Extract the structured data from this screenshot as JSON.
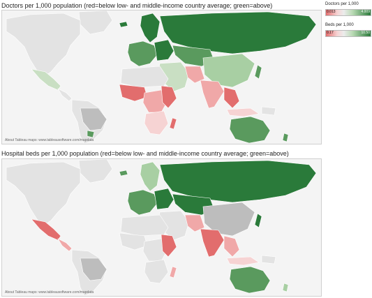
{
  "maps": [
    {
      "title": "Doctors per 1,000 population (red=below low- and middle-income country average; green=above)",
      "about": "About Tableau maps: www.tableausoftware.com/mapdata"
    },
    {
      "title": "Hospital beds per 1,000 population (red=below low- and middle-income country average; green=above)",
      "about": "About Tableau maps: www.tableausoftware.com/mapdata"
    }
  ],
  "legends": [
    {
      "title": "Doctors per 1,000",
      "min": "0.013",
      "max": "4.009"
    },
    {
      "title": "Beds per 1,000",
      "min": "0.17",
      "max": "10.50"
    }
  ],
  "colors": {
    "ocean": "#f4f4f4",
    "land_no_data": "#e3e3e3",
    "dark_green": "#2a7a3a",
    "mid_green": "#5a9a5e",
    "light_green": "#a8cfa3",
    "pale_green": "#c9dfc3",
    "grey": "#bdbdbd",
    "red": "#e26d6d",
    "light_red": "#f0a8a8",
    "pale_red": "#f6d3d3"
  }
}
